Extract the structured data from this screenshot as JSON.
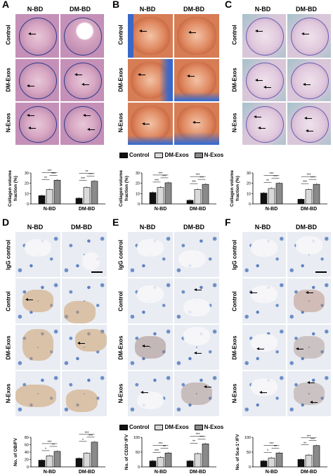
{
  "panels": {
    "A": {
      "letter": "A",
      "col_headers": [
        "N-BD",
        "DM-BD"
      ],
      "row_labels": [
        "Control",
        "DM-Exos",
        "N-Exos"
      ]
    },
    "B": {
      "letter": "B",
      "col_headers": [
        "N-BD",
        "DM-BD"
      ],
      "row_labels": [
        "Control",
        "DM-Exos",
        "N-Exos"
      ]
    },
    "C": {
      "letter": "C",
      "col_headers": [
        "N-BD",
        "DM-BD"
      ],
      "row_labels": [
        "Control",
        "DM-Exos",
        "N-Exos"
      ]
    },
    "D": {
      "letter": "D",
      "col_headers": [
        "N-BD",
        "DM-BD"
      ],
      "row_labels": [
        "IgG control",
        "Control",
        "DM-Exos",
        "N-Exos"
      ]
    },
    "E": {
      "letter": "E",
      "col_headers": [
        "N-BD",
        "DM-BD"
      ],
      "row_labels": [
        "IgG control",
        "Control",
        "DM-Exos",
        "N-Exos"
      ]
    },
    "F": {
      "letter": "F",
      "col_headers": [
        "N-BD",
        "DM-BD"
      ],
      "row_labels": [
        "IgG control",
        "Control",
        "DM-Exos",
        "N-Exos"
      ]
    }
  },
  "legend_top": [
    "Control",
    "DM-Exos",
    "N-Exos"
  ],
  "legend_bottom": [
    "Control",
    "DM-Exos",
    "N-Exos"
  ],
  "colors": {
    "control": "#111111",
    "dm_exos": "#d9d9d9",
    "n_exos": "#8a8a8a"
  },
  "chart_data": [
    {
      "id": "A",
      "type": "bar",
      "categories": [
        "N-BD",
        "DM-BD"
      ],
      "series": [
        {
          "name": "Control",
          "values": [
            8,
            5.5
          ]
        },
        {
          "name": "DM-Exos",
          "values": [
            14,
            16
          ]
        },
        {
          "name": "N-Exos",
          "values": [
            23,
            22
          ]
        }
      ],
      "ylabel_lines": [
        "Collagen volume",
        "fraction (%)"
      ],
      "ylim": [
        0,
        30
      ],
      "yticks": [
        "0",
        "10",
        "20",
        "30"
      ],
      "sig": [
        [
          "**",
          "***",
          "***"
        ],
        [
          "***",
          "**",
          "***"
        ]
      ]
    },
    {
      "id": "B",
      "type": "bar",
      "categories": [
        "N-BD",
        "DM-BD"
      ],
      "series": [
        {
          "name": "Control",
          "values": [
            11,
            3.5
          ]
        },
        {
          "name": "DM-Exos",
          "values": [
            16,
            14
          ]
        },
        {
          "name": "N-Exos",
          "values": [
            20.5,
            19
          ]
        }
      ],
      "ylabel_lines": [
        "Collagen volume",
        "fraction (%)"
      ],
      "ylim": [
        0,
        30
      ],
      "yticks": [
        "0",
        "10",
        "20",
        "30"
      ],
      "sig": [
        [
          "***",
          "***",
          "***"
        ],
        [
          "***",
          "***",
          "***"
        ]
      ]
    },
    {
      "id": "C",
      "type": "bar",
      "categories": [
        "N-BD",
        "DM-BD"
      ],
      "series": [
        {
          "name": "Control",
          "values": [
            10.5,
            4.5
          ]
        },
        {
          "name": "DM-Exos",
          "values": [
            15,
            14
          ]
        },
        {
          "name": "N-Exos",
          "values": [
            20,
            19
          ]
        }
      ],
      "ylabel_lines": [
        "Collagen volume",
        "fraction (%)"
      ],
      "ylim": [
        0,
        30
      ],
      "yticks": [
        "0",
        "10",
        "20",
        "30"
      ],
      "sig": [
        [
          "**",
          "***",
          "***"
        ],
        [
          "***",
          "***",
          "***"
        ]
      ]
    },
    {
      "id": "D",
      "type": "bar",
      "categories": [
        "N-BD",
        "DM-BD"
      ],
      "series": [
        {
          "name": "Control",
          "values": [
            18,
            23
          ]
        },
        {
          "name": "DM-Exos",
          "values": [
            30,
            37
          ]
        },
        {
          "name": "N-Exos",
          "values": [
            42,
            67
          ]
        }
      ],
      "ylabel_lines": [
        "No. of OB/FV"
      ],
      "ylim": [
        0,
        80
      ],
      "yticks": [
        "0",
        "20",
        "40",
        "60",
        "80"
      ],
      "sig": [
        [
          "*",
          "***",
          "**"
        ],
        [
          "*",
          "***",
          "***"
        ]
      ]
    },
    {
      "id": "E",
      "type": "bar",
      "categories": [
        "N-BD",
        "DM-BD"
      ],
      "series": [
        {
          "name": "Control",
          "values": [
            20,
            20
          ]
        },
        {
          "name": "DM-Exos",
          "values": [
            32,
            45
          ]
        },
        {
          "name": "N-Exos",
          "values": [
            47,
            78
          ]
        }
      ],
      "ylabel_lines": [
        "No. of CD29⁺/FV"
      ],
      "ylim": [
        0,
        100
      ],
      "yticks": [
        "0",
        "50",
        "100"
      ],
      "sig": [
        [
          "***",
          "***",
          "**"
        ],
        [
          "**",
          "***",
          "***"
        ]
      ]
    },
    {
      "id": "F",
      "type": "bar",
      "categories": [
        "N-BD",
        "DM-BD"
      ],
      "series": [
        {
          "name": "Control",
          "values": [
            20,
            25
          ]
        },
        {
          "name": "DM-Exos",
          "values": [
            30,
            40
          ]
        },
        {
          "name": "N-Exos",
          "values": [
            47,
            72
          ]
        }
      ],
      "ylabel_lines": [
        "No. of Sca-1⁺/FV"
      ],
      "ylim": [
        0,
        100
      ],
      "yticks": [
        "0",
        "50",
        "100"
      ],
      "sig": [
        [
          "*",
          "***",
          "**"
        ],
        [
          "**",
          "***",
          "***"
        ]
      ]
    }
  ]
}
